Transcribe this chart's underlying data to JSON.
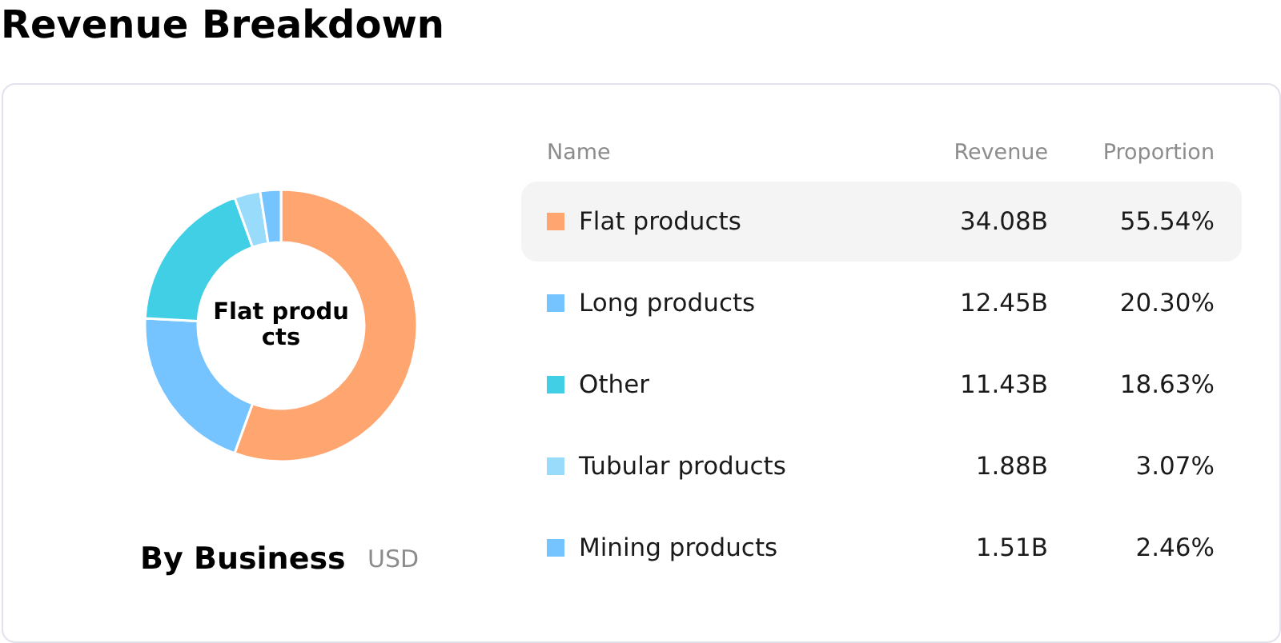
{
  "chart_data": {
    "type": "donut",
    "title": "Revenue Breakdown",
    "subtitle": "By Business",
    "categories": [
      "Flat products",
      "Long products",
      "Other",
      "Tubular products",
      "Mining products"
    ],
    "values": [
      34.08,
      12.45,
      11.43,
      1.88,
      1.51
    ],
    "value_labels": [
      "34.08B",
      "12.45B",
      "11.43B",
      "1.88B",
      "1.51B"
    ],
    "colors": [
      "#ffa570",
      "#75c3ff",
      "#41cfe6",
      "#99dbfb",
      "#75c3ff"
    ],
    "legend": "right",
    "legend_title": "Name",
    "annotations": [
      "Flat produ\ncts",
      "USD",
      "Revenue",
      "Proportion",
      "55.54%",
      "20.30%",
      "18.63%",
      "3.07%",
      "2.46%"
    ]
  }
}
